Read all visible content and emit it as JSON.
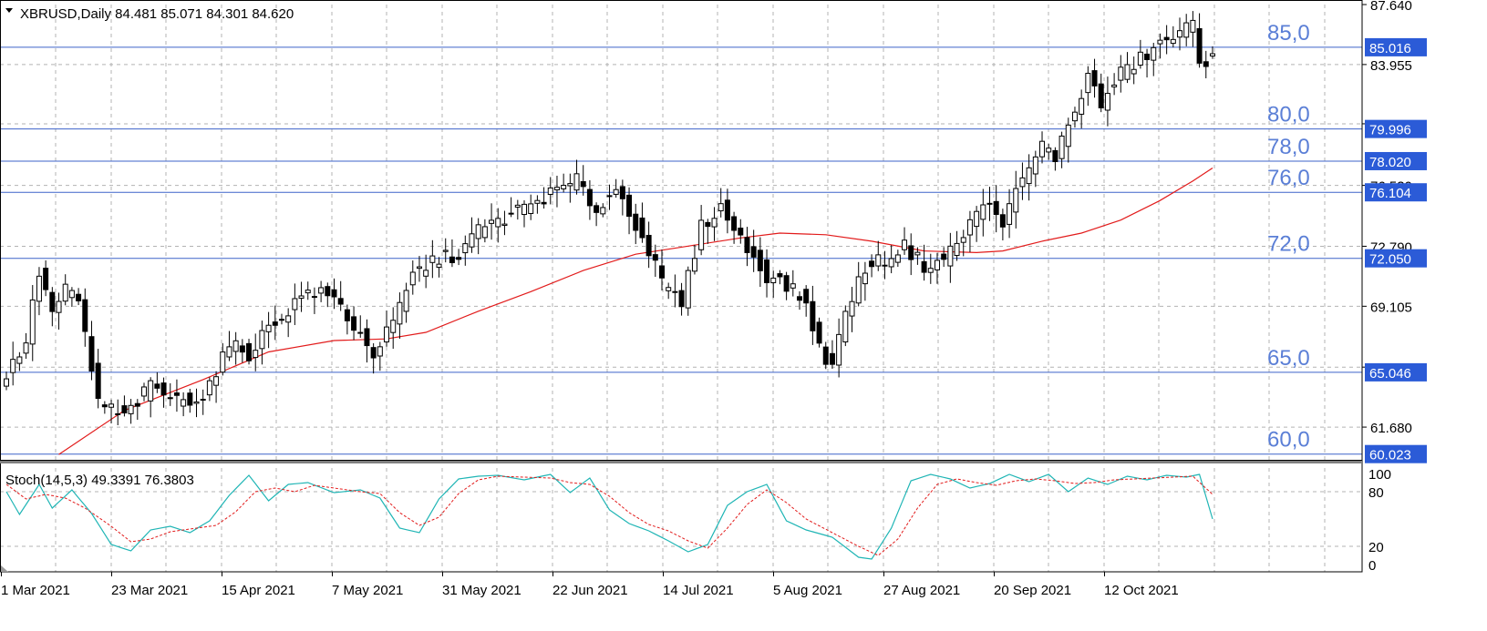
{
  "header": {
    "symbol_info": "XBRUSD,Daily  84.481 85.071 84.301 84.620",
    "stoch_info": "Stoch(14,5,3) 49.3391 76.3803"
  },
  "colors": {
    "grid": "#b3b3b3",
    "level_line": "#3d63c9",
    "level_label": "#5b7fd6",
    "tag_bg": "#2b5bd7",
    "ma_line": "#e21b1b",
    "stoch_main": "#1fb5b5",
    "stoch_signal": "#e21b1b",
    "candle": "#000000"
  },
  "chart_data": [
    {
      "type": "candlestick",
      "title": "XBRUSD,Daily",
      "last_bar": {
        "open": 84.481,
        "high": 85.071,
        "low": 84.301,
        "close": 84.62
      },
      "ylim": [
        59.67,
        87.64
      ],
      "price_axis_ticks": [
        "87.640",
        "83.955",
        "80.315",
        "76.530",
        "72.790",
        "69.105",
        "65.365",
        "61.680"
      ],
      "x_tick_labels": [
        "1 Mar 2021",
        "23 Mar 2021",
        "15 Apr 2021",
        "7 May 2021",
        "31 May 2021",
        "22 Jun 2021",
        "14 Jul 2021",
        "5 Aug 2021",
        "27 Aug 2021",
        "20 Sep 2021",
        "12 Oct 2021"
      ],
      "horizontal_levels": [
        {
          "label": "85,0",
          "tag": "85.016",
          "value": 85.016
        },
        {
          "label": "80,0",
          "tag": "79.996",
          "value": 79.996
        },
        {
          "label": "78,0",
          "tag": "78.020",
          "value": 78.02
        },
        {
          "label": "76,0",
          "tag": "76.104",
          "value": 76.104
        },
        {
          "label": "72,0",
          "tag": "72.050",
          "value": 72.05
        },
        {
          "label": "65,0",
          "tag": "65.046",
          "value": 65.046
        },
        {
          "label": "60,0",
          "tag": "60.023",
          "value": 60.023
        }
      ],
      "close_anchors": [
        [
          0,
          64.8
        ],
        [
          3,
          67.0
        ],
        [
          5,
          71.2
        ],
        [
          7,
          68.7
        ],
        [
          9,
          70.1
        ],
        [
          11,
          69.4
        ],
        [
          14,
          63.2
        ],
        [
          18,
          62.3
        ],
        [
          22,
          64.2
        ],
        [
          26,
          63.3
        ],
        [
          30,
          63.6
        ],
        [
          34,
          66.7
        ],
        [
          37,
          66.2
        ],
        [
          40,
          67.8
        ],
        [
          43,
          68.9
        ],
        [
          46,
          70.1
        ],
        [
          50,
          69.6
        ],
        [
          53,
          67.9
        ],
        [
          56,
          66.2
        ],
        [
          59,
          68.0
        ],
        [
          62,
          71.0
        ],
        [
          65,
          71.9
        ],
        [
          69,
          72.3
        ],
        [
          72,
          73.8
        ],
        [
          76,
          74.5
        ],
        [
          79,
          75.2
        ],
        [
          83,
          76.0
        ],
        [
          87,
          76.8
        ],
        [
          90,
          75.0
        ],
        [
          93,
          76.3
        ],
        [
          97,
          73.5
        ],
        [
          100,
          70.5
        ],
        [
          103,
          69.3
        ],
        [
          106,
          74.0
        ],
        [
          109,
          75.2
        ],
        [
          112,
          73.2
        ],
        [
          116,
          71.0
        ],
        [
          119,
          70.4
        ],
        [
          122,
          69.3
        ],
        [
          124,
          66.5
        ],
        [
          126,
          65.4
        ],
        [
          128,
          68.8
        ],
        [
          131,
          71.5
        ],
        [
          134,
          72.0
        ],
        [
          137,
          72.8
        ],
        [
          140,
          71.6
        ],
        [
          143,
          72.0
        ],
        [
          146,
          73.5
        ],
        [
          149,
          75.5
        ],
        [
          152,
          74.4
        ],
        [
          155,
          76.8
        ],
        [
          158,
          79.0
        ],
        [
          160,
          78.3
        ],
        [
          163,
          81.2
        ],
        [
          165,
          83.2
        ],
        [
          167,
          81.5
        ],
        [
          170,
          83.4
        ],
        [
          173,
          84.3
        ],
        [
          176,
          85.2
        ],
        [
          179,
          85.9
        ],
        [
          181,
          86.4
        ],
        [
          182,
          83.9
        ],
        [
          184,
          84.62
        ]
      ],
      "ma_points": [
        [
          8,
          60.0
        ],
        [
          18,
          62.7
        ],
        [
          30,
          64.6
        ],
        [
          40,
          66.3
        ],
        [
          50,
          67.0
        ],
        [
          58,
          67.1
        ],
        [
          64,
          67.5
        ],
        [
          72,
          68.8
        ],
        [
          80,
          70.0
        ],
        [
          88,
          71.3
        ],
        [
          96,
          72.3
        ],
        [
          104,
          72.8
        ],
        [
          112,
          73.3
        ],
        [
          118,
          73.6
        ],
        [
          125,
          73.5
        ],
        [
          132,
          73.1
        ],
        [
          140,
          72.5
        ],
        [
          148,
          72.4
        ],
        [
          152,
          72.5
        ],
        [
          158,
          73.1
        ],
        [
          164,
          73.6
        ],
        [
          170,
          74.4
        ],
        [
          176,
          75.6
        ],
        [
          181,
          76.8
        ],
        [
          184,
          77.6
        ]
      ],
      "stoch_ylim": [
        0,
        100
      ],
      "stoch_ticks": [
        "100",
        "80",
        "20",
        "0"
      ],
      "stoch_main_anchors": [
        [
          0,
          80
        ],
        [
          2,
          55
        ],
        [
          5,
          88
        ],
        [
          7,
          62
        ],
        [
          10,
          82
        ],
        [
          13,
          56
        ],
        [
          16,
          22
        ],
        [
          19,
          15
        ],
        [
          22,
          38
        ],
        [
          25,
          42
        ],
        [
          28,
          35
        ],
        [
          31,
          48
        ],
        [
          34,
          76
        ],
        [
          37,
          98
        ],
        [
          40,
          70
        ],
        [
          43,
          88
        ],
        [
          46,
          90
        ],
        [
          50,
          79
        ],
        [
          54,
          82
        ],
        [
          57,
          73
        ],
        [
          60,
          40
        ],
        [
          63,
          35
        ],
        [
          66,
          72
        ],
        [
          69,
          94
        ],
        [
          72,
          97
        ],
        [
          75,
          98
        ],
        [
          79,
          93
        ],
        [
          83,
          99
        ],
        [
          86,
          79
        ],
        [
          89,
          95
        ],
        [
          92,
          60
        ],
        [
          95,
          45
        ],
        [
          98,
          37
        ],
        [
          101,
          26
        ],
        [
          104,
          14
        ],
        [
          107,
          22
        ],
        [
          110,
          65
        ],
        [
          113,
          80
        ],
        [
          116,
          88
        ],
        [
          119,
          48
        ],
        [
          122,
          38
        ],
        [
          126,
          30
        ],
        [
          130,
          8
        ],
        [
          132,
          6
        ],
        [
          135,
          40
        ],
        [
          138,
          92
        ],
        [
          141,
          99
        ],
        [
          144,
          94
        ],
        [
          147,
          84
        ],
        [
          150,
          89
        ],
        [
          153,
          99
        ],
        [
          156,
          91
        ],
        [
          159,
          99
        ],
        [
          162,
          80
        ],
        [
          165,
          95
        ],
        [
          168,
          88
        ],
        [
          171,
          97
        ],
        [
          174,
          93
        ],
        [
          177,
          98
        ],
        [
          180,
          96
        ],
        [
          182,
          99
        ],
        [
          184,
          50
        ]
      ],
      "stoch_signal_anchors": [
        [
          0,
          88
        ],
        [
          3,
          72
        ],
        [
          6,
          77
        ],
        [
          9,
          73
        ],
        [
          12,
          62
        ],
        [
          16,
          42
        ],
        [
          19,
          25
        ],
        [
          22,
          28
        ],
        [
          25,
          36
        ],
        [
          28,
          39
        ],
        [
          32,
          43
        ],
        [
          35,
          58
        ],
        [
          38,
          80
        ],
        [
          41,
          84
        ],
        [
          44,
          80
        ],
        [
          47,
          87
        ],
        [
          50,
          84
        ],
        [
          54,
          80
        ],
        [
          57,
          78
        ],
        [
          60,
          57
        ],
        [
          63,
          43
        ],
        [
          66,
          52
        ],
        [
          69,
          78
        ],
        [
          72,
          93
        ],
        [
          75,
          97
        ],
        [
          79,
          96
        ],
        [
          83,
          95
        ],
        [
          86,
          90
        ],
        [
          89,
          88
        ],
        [
          92,
          75
        ],
        [
          95,
          57
        ],
        [
          98,
          44
        ],
        [
          101,
          37
        ],
        [
          104,
          26
        ],
        [
          107,
          18
        ],
        [
          110,
          40
        ],
        [
          113,
          66
        ],
        [
          116,
          82
        ],
        [
          119,
          68
        ],
        [
          122,
          50
        ],
        [
          126,
          35
        ],
        [
          130,
          20
        ],
        [
          133,
          10
        ],
        [
          136,
          28
        ],
        [
          139,
          62
        ],
        [
          142,
          88
        ],
        [
          145,
          94
        ],
        [
          148,
          90
        ],
        [
          151,
          87
        ],
        [
          154,
          92
        ],
        [
          157,
          94
        ],
        [
          160,
          92
        ],
        [
          163,
          89
        ],
        [
          166,
          90
        ],
        [
          169,
          93
        ],
        [
          172,
          94
        ],
        [
          175,
          95
        ],
        [
          178,
          96
        ],
        [
          181,
          97
        ],
        [
          184,
          77
        ]
      ]
    }
  ]
}
